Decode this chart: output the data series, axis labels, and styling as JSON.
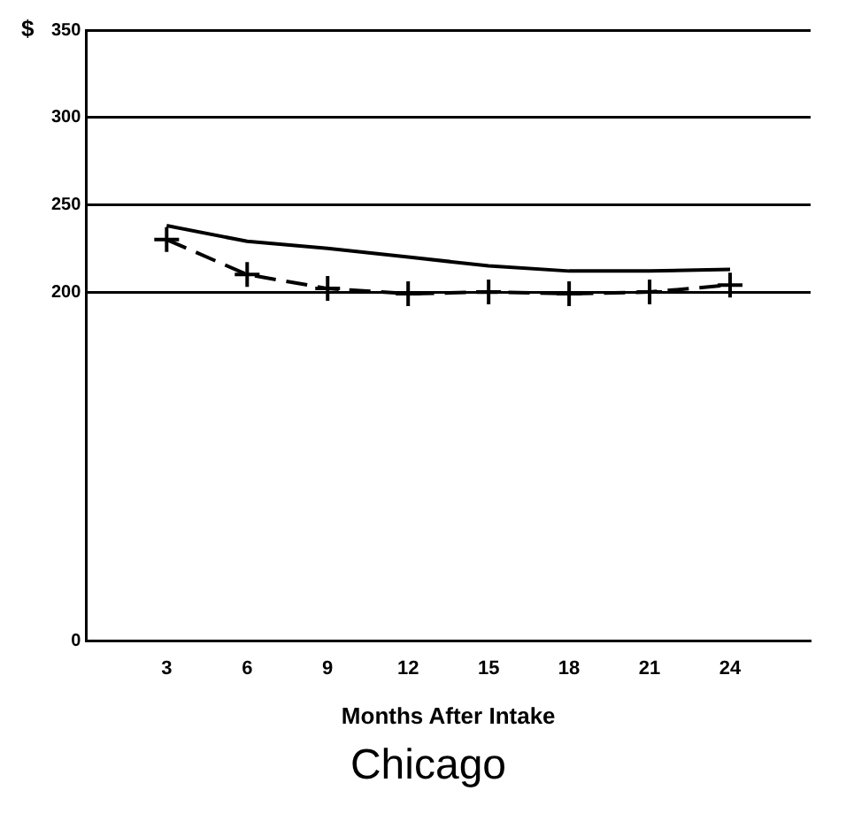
{
  "chart_data": {
    "type": "line",
    "title": "Chicago",
    "xlabel": "Months After Intake",
    "ylabel": "$",
    "x": [
      3,
      6,
      9,
      12,
      15,
      18,
      21,
      24
    ],
    "series": [
      {
        "color": "#000000",
        "line_style": "solid",
        "marker": "none",
        "values": [
          238,
          229,
          225,
          220,
          215,
          212,
          212,
          213
        ]
      },
      {
        "color": "#000000",
        "line_style": "dashed",
        "marker": "cross",
        "values": [
          230,
          210,
          202,
          199,
          200,
          199,
          200,
          204
        ]
      }
    ],
    "xlim": [
      0,
      27
    ],
    "xticks": [
      3,
      6,
      9,
      12,
      15,
      18,
      21,
      24
    ],
    "ylim": [
      0,
      350
    ],
    "yticks": [
      0,
      200,
      250,
      300,
      350
    ],
    "grid": "y"
  }
}
